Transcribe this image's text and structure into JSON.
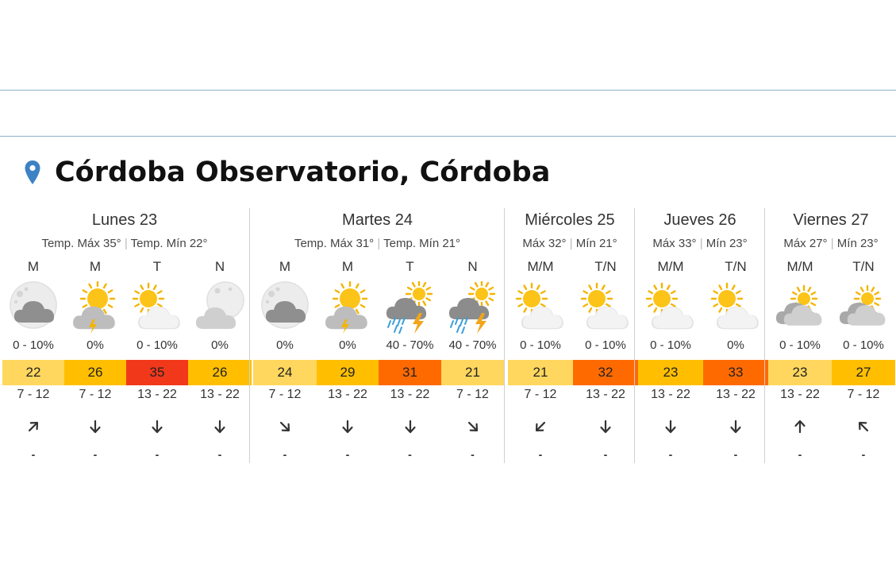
{
  "location": {
    "title": "Córdoba Observatorio, Córdoba",
    "icon": "map-pin-icon",
    "pin_color": "#3d82c4"
  },
  "colors": {
    "temp_scale": {
      "light": "#ffd75e",
      "amber": "#ffbf00",
      "orange": "#ff6a00",
      "red": "#f2381b"
    },
    "divider": "#8fb3cc"
  },
  "days": [
    {
      "name": "Lunes 23",
      "temps": {
        "max": "Temp. Máx 35°",
        "min": "Temp. Mín 22°"
      },
      "periods": [
        {
          "label": "M",
          "icon": "cloudy-night-icon",
          "rain": "0 - 10%",
          "temp": "22",
          "temp_level": "light",
          "wind": "7 - 12",
          "wind_dir": "ne",
          "extra": "-"
        },
        {
          "label": "M",
          "icon": "sun-storm-cloud-icon",
          "rain": "0%",
          "temp": "26",
          "temp_level": "amber",
          "wind": "7 - 12",
          "wind_dir": "s",
          "extra": "-"
        },
        {
          "label": "T",
          "icon": "partly-cloudy-icon",
          "rain": "0 - 10%",
          "temp": "35",
          "temp_level": "red",
          "wind": "13 - 22",
          "wind_dir": "s",
          "extra": "-"
        },
        {
          "label": "N",
          "icon": "night-partly-cloudy-icon",
          "rain": "0%",
          "temp": "26",
          "temp_level": "amber",
          "wind": "13 - 22",
          "wind_dir": "s",
          "extra": "-"
        }
      ]
    },
    {
      "name": "Martes 24",
      "temps": {
        "max": "Temp. Máx 31°",
        "min": "Temp. Mín 21°"
      },
      "periods": [
        {
          "label": "M",
          "icon": "cloudy-night-icon",
          "rain": "0%",
          "temp": "24",
          "temp_level": "light",
          "wind": "7 - 12",
          "wind_dir": "se",
          "extra": "-"
        },
        {
          "label": "M",
          "icon": "sun-storm-cloud-icon",
          "rain": "0%",
          "temp": "29",
          "temp_level": "amber",
          "wind": "13 - 22",
          "wind_dir": "s",
          "extra": "-"
        },
        {
          "label": "T",
          "icon": "thunderstorm-rain-icon",
          "rain": "40 - 70%",
          "temp": "31",
          "temp_level": "orange",
          "wind": "13 - 22",
          "wind_dir": "s",
          "extra": "-"
        },
        {
          "label": "N",
          "icon": "thunderstorm-rain-icon",
          "rain": "40 - 70%",
          "temp": "21",
          "temp_level": "light",
          "wind": "7 - 12",
          "wind_dir": "se",
          "extra": "-"
        }
      ]
    },
    {
      "name": "Miércoles 25",
      "temps": {
        "max": "Máx 32°",
        "min": "Mín 21°"
      },
      "periods": [
        {
          "label": "M/M",
          "icon": "partly-cloudy-icon",
          "rain": "0 - 10%",
          "temp": "21",
          "temp_level": "light",
          "wind": "7 - 12",
          "wind_dir": "sw",
          "extra": "-"
        },
        {
          "label": "T/N",
          "icon": "partly-cloudy-icon",
          "rain": "0 - 10%",
          "temp": "32",
          "temp_level": "orange",
          "wind": "13 - 22",
          "wind_dir": "s",
          "extra": "-"
        }
      ]
    },
    {
      "name": "Jueves 26",
      "temps": {
        "max": "Máx 33°",
        "min": "Mín 23°"
      },
      "periods": [
        {
          "label": "M/M",
          "icon": "partly-cloudy-icon",
          "rain": "0 - 10%",
          "temp": "23",
          "temp_level": "amber",
          "wind": "13 - 22",
          "wind_dir": "s",
          "extra": "-"
        },
        {
          "label": "T/N",
          "icon": "partly-cloudy-icon",
          "rain": "0%",
          "temp": "33",
          "temp_level": "orange",
          "wind": "13 - 22",
          "wind_dir": "s",
          "extra": "-"
        }
      ]
    },
    {
      "name": "Viernes 27",
      "temps": {
        "max": "Máx 27°",
        "min": "Mín 23°"
      },
      "periods": [
        {
          "label": "M/M",
          "icon": "mostly-cloudy-icon",
          "rain": "0 - 10%",
          "temp": "23",
          "temp_level": "light",
          "wind": "13 - 22",
          "wind_dir": "n",
          "extra": "-"
        },
        {
          "label": "T/N",
          "icon": "mostly-cloudy-icon",
          "rain": "0 - 10%",
          "temp": "27",
          "temp_level": "amber",
          "wind": "7 - 12",
          "wind_dir": "nw",
          "extra": "-"
        }
      ]
    }
  ]
}
